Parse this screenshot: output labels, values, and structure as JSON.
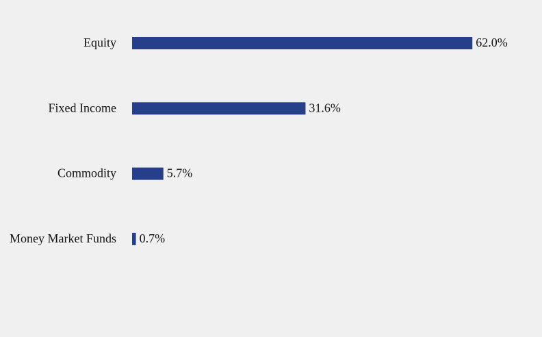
{
  "chart_data": {
    "type": "bar",
    "orientation": "horizontal",
    "categories": [
      "Equity",
      "Fixed Income",
      "Commodity",
      "Money Market Funds"
    ],
    "values": [
      62.0,
      31.6,
      5.7,
      0.7
    ],
    "value_labels": [
      "62.0%",
      "31.6%",
      "5.7%",
      "0.7%"
    ],
    "color": "#253f8b"
  }
}
